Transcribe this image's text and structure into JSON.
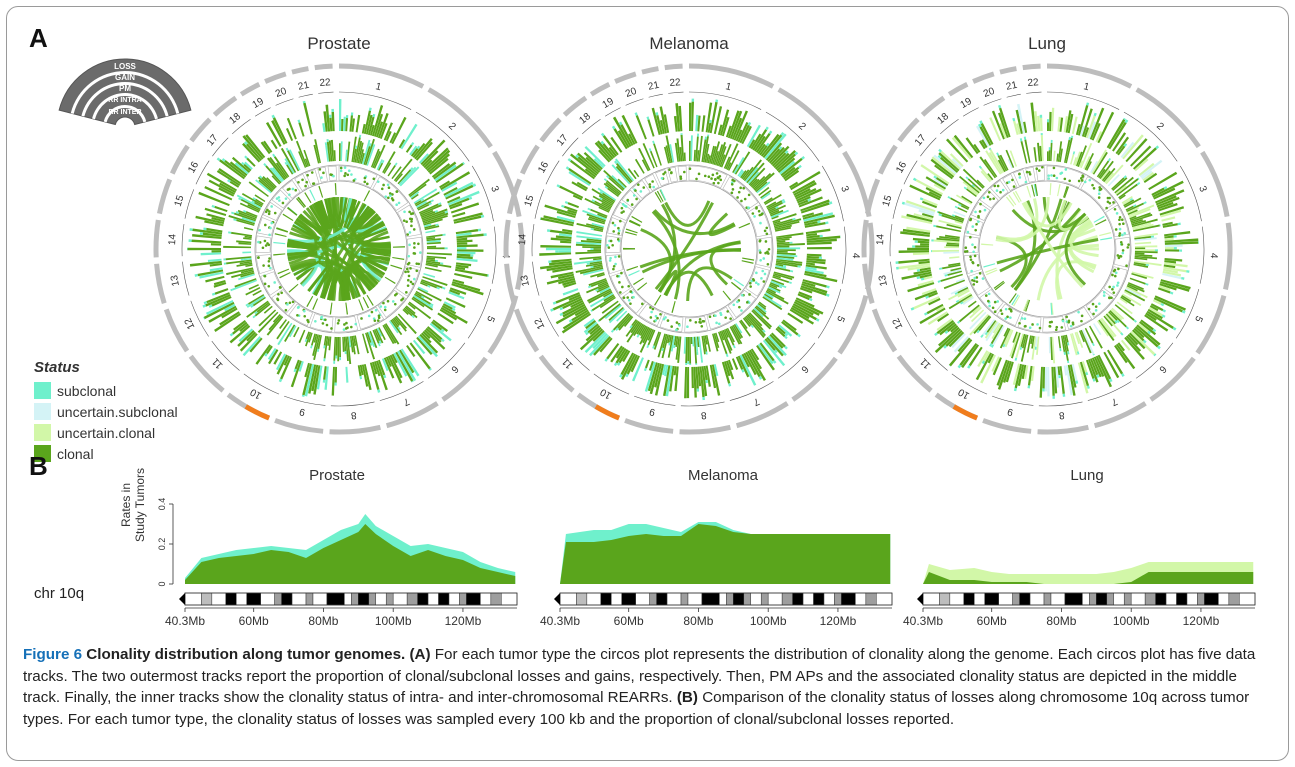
{
  "panel_a_label": "A",
  "panel_b_label": "B",
  "circos_titles": [
    "Prostate",
    "Melanoma",
    "Lung"
  ],
  "track_key": [
    "LOSS",
    "GAIN",
    "PM",
    "RR INTRA",
    "RR INTER"
  ],
  "chromosomes": [
    "1",
    "2",
    "3",
    "4",
    "5",
    "6",
    "7",
    "8",
    "9",
    "10",
    "11",
    "12",
    "13",
    "14",
    "15",
    "16",
    "17",
    "18",
    "19",
    "20",
    "21",
    "22"
  ],
  "legend": {
    "title": "Status",
    "items": [
      {
        "label": "subclonal",
        "color": "#6ff0cc"
      },
      {
        "label": "uncertain.subclonal",
        "color": "#d4f3f6"
      },
      {
        "label": "uncertain.clonal",
        "color": "#d2f7a8"
      },
      {
        "label": "clonal",
        "color": "#5aa51c"
      }
    ]
  },
  "colors": {
    "clonal": "#5aa51c",
    "subclonal": "#6ff0cc",
    "uncertain_subclonal": "#d4f3f6",
    "uncertain_clonal": "#d2f7a8",
    "highlight": "#f07d1d",
    "ring": "#bdbdbd"
  },
  "panel_b": {
    "ylabel": "Rates in\nStudy Tumors",
    "chr_label": "chr 10q",
    "yticks": [
      "0",
      "0.2",
      "0.4"
    ],
    "xticks": [
      "40.3Mb",
      "60Mb",
      "80Mb",
      "100Mb",
      "120Mb"
    ]
  },
  "chart_data": [
    {
      "type": "area",
      "title": "Prostate",
      "ylabel": "Rates in Study Tumors",
      "x": [
        40.3,
        45,
        50,
        55,
        60,
        65,
        70,
        75,
        80,
        85,
        90,
        92,
        95,
        100,
        105,
        110,
        115,
        120,
        125,
        130,
        135
      ],
      "ylim": [
        0,
        0.4
      ],
      "series": [
        {
          "name": "clonal",
          "values": [
            0.02,
            0.11,
            0.13,
            0.14,
            0.15,
            0.17,
            0.16,
            0.13,
            0.18,
            0.22,
            0.26,
            0.3,
            0.25,
            0.19,
            0.14,
            0.17,
            0.14,
            0.12,
            0.08,
            0.06,
            0.04
          ]
        },
        {
          "name": "subclonal",
          "values": [
            0.03,
            0.13,
            0.15,
            0.17,
            0.18,
            0.19,
            0.18,
            0.17,
            0.22,
            0.27,
            0.3,
            0.35,
            0.29,
            0.24,
            0.19,
            0.2,
            0.18,
            0.16,
            0.11,
            0.08,
            0.06
          ]
        }
      ]
    },
    {
      "type": "area",
      "title": "Melanoma",
      "x": [
        40.3,
        42,
        50,
        55,
        60,
        65,
        70,
        75,
        80,
        85,
        90,
        95,
        100,
        105,
        110,
        115,
        120,
        125,
        130,
        135
      ],
      "ylim": [
        0,
        0.4
      ],
      "series": [
        {
          "name": "clonal",
          "values": [
            0.0,
            0.21,
            0.21,
            0.22,
            0.24,
            0.25,
            0.24,
            0.24,
            0.3,
            0.29,
            0.26,
            0.25,
            0.25,
            0.25,
            0.25,
            0.25,
            0.25,
            0.25,
            0.25,
            0.25
          ]
        },
        {
          "name": "subclonal",
          "values": [
            0.0,
            0.25,
            0.27,
            0.27,
            0.3,
            0.3,
            0.28,
            0.26,
            0.31,
            0.31,
            0.27,
            0.25,
            0.25,
            0.25,
            0.25,
            0.25,
            0.25,
            0.25,
            0.25,
            0.25
          ]
        }
      ]
    },
    {
      "type": "area",
      "title": "Lung",
      "x": [
        40.3,
        42,
        48,
        55,
        60,
        65,
        70,
        75,
        80,
        85,
        90,
        95,
        100,
        105,
        110,
        115,
        120,
        125,
        130,
        135
      ],
      "ylim": [
        0,
        0.4
      ],
      "series": [
        {
          "name": "clonal",
          "values": [
            0.0,
            0.06,
            0.02,
            0.02,
            0.01,
            0.01,
            0.01,
            0.0,
            0.0,
            0.0,
            0.0,
            0.0,
            0.01,
            0.06,
            0.06,
            0.06,
            0.06,
            0.06,
            0.06,
            0.06
          ]
        },
        {
          "name": "uncertain.clonal",
          "values": [
            0.0,
            0.1,
            0.07,
            0.08,
            0.06,
            0.05,
            0.05,
            0.05,
            0.05,
            0.05,
            0.05,
            0.06,
            0.08,
            0.11,
            0.11,
            0.11,
            0.11,
            0.11,
            0.11,
            0.11
          ]
        }
      ]
    }
  ],
  "caption": {
    "label": "Figure 6",
    "title": " Clonality distribution along tumor genomes.",
    "a_ref": " (A)",
    "a_text": " For each tumor type the circos plot represents the distribution of clonality along the genome. Each circos plot has five data tracks. The two outermost tracks report the proportion of clonal/subclonal losses and gains, respectively. Then, PM APs and the associated clonality status are depicted in the middle track. Finally, the inner tracks show the clonality status of intra- and inter-chromosomal REARRs.",
    "b_ref": " (B)",
    "b_text": " Comparison of the clonality status of losses along chromosome 10q across tumor types. For each tumor type, the clonality status of losses was sampled every 100 kb and the proportion of clonal/subclonal losses reported."
  }
}
